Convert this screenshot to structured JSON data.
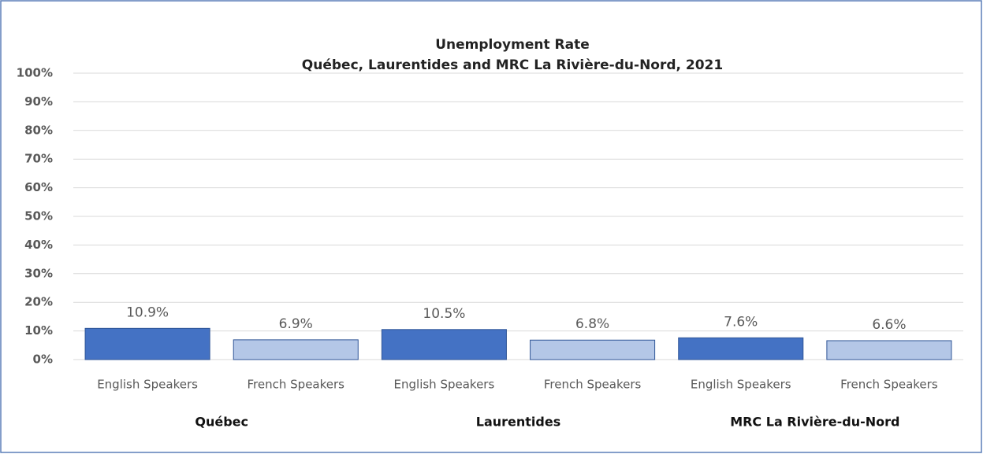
{
  "chart_data": {
    "type": "bar",
    "title": "Unemployment Rate",
    "subtitle": "Québec, Laurentides and MRC La Rivière-du-Nord, 2021",
    "groups": [
      {
        "name": "Québec",
        "categories": [
          "English Speakers",
          "French Speakers"
        ],
        "values": [
          10.9,
          6.9
        ],
        "value_labels": [
          "10.9%",
          "6.9%"
        ]
      },
      {
        "name": "Laurentides",
        "categories": [
          "English Speakers",
          "French Speakers"
        ],
        "values": [
          10.5,
          6.8
        ],
        "value_labels": [
          "10.5%",
          "6.8%"
        ]
      },
      {
        "name": "MRC La Rivière-du-Nord",
        "categories": [
          "English Speakers",
          "French Speakers"
        ],
        "values": [
          7.6,
          6.6
        ],
        "value_labels": [
          "7.6%",
          "6.6%"
        ]
      }
    ],
    "colors": [
      "#4472c4",
      "#b4c7e7"
    ],
    "ylim": [
      0,
      100
    ],
    "yticks": [
      {
        "value": 0,
        "label": "0%"
      },
      {
        "value": 10,
        "label": "10%"
      },
      {
        "value": 20,
        "label": "20%"
      },
      {
        "value": 30,
        "label": "30%"
      },
      {
        "value": 40,
        "label": "40%"
      },
      {
        "value": 50,
        "label": "50%"
      },
      {
        "value": 60,
        "label": "60%"
      },
      {
        "value": 70,
        "label": "70%"
      },
      {
        "value": 80,
        "label": "80%"
      },
      {
        "value": 90,
        "label": "90%"
      },
      {
        "value": 100,
        "label": "100%"
      }
    ],
    "grid": true
  }
}
